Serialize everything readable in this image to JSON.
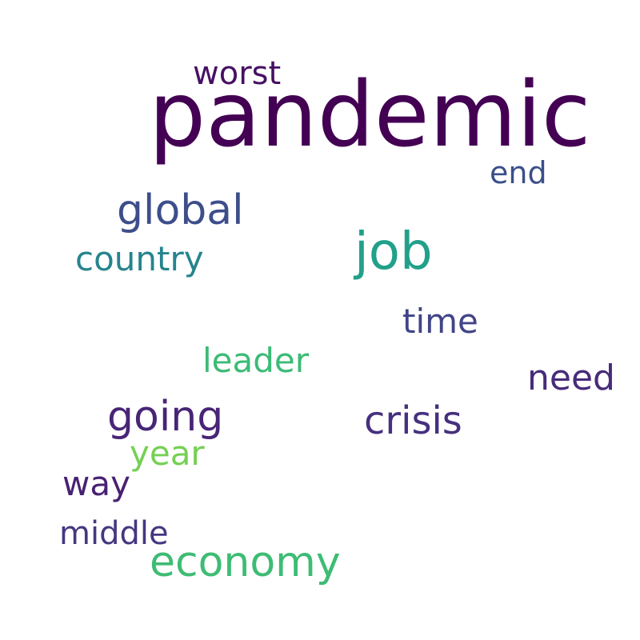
{
  "words": [
    {
      "text": "pandemic",
      "color": "#440154"
    },
    {
      "text": "worst",
      "color": "#471063"
    },
    {
      "text": "end",
      "color": "#3b4f8a"
    },
    {
      "text": "global",
      "color": "#3d4e8a"
    },
    {
      "text": "job",
      "color": "#21a08a"
    },
    {
      "text": "country",
      "color": "#25848e"
    },
    {
      "text": "time",
      "color": "#414487"
    },
    {
      "text": "leader",
      "color": "#3bbb75"
    },
    {
      "text": "need",
      "color": "#472c7a"
    },
    {
      "text": "going",
      "color": "#482576"
    },
    {
      "text": "crisis",
      "color": "#46307e"
    },
    {
      "text": "year",
      "color": "#75d054"
    },
    {
      "text": "way",
      "color": "#482173"
    },
    {
      "text": "middle",
      "color": "#453781"
    },
    {
      "text": "economy",
      "color": "#3dbc74"
    }
  ]
}
